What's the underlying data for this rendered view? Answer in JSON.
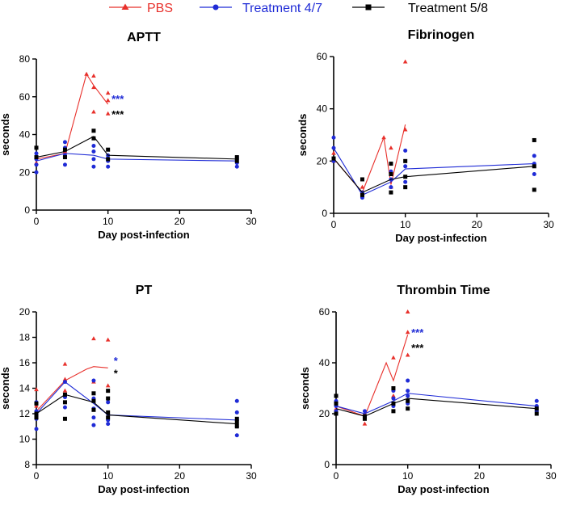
{
  "legend": [
    {
      "name": "PBS",
      "color": "#e8302b",
      "marker": "triangle"
    },
    {
      "name": "Treatment 4/7",
      "color": "#1f2bd6",
      "marker": "circle"
    },
    {
      "name": "Treatment 5/8",
      "color": "#000000",
      "marker": "square"
    }
  ],
  "chart_data": [
    {
      "type": "scatter",
      "title": "APTT",
      "xlabel": "Day post-infection",
      "ylabel": "seconds",
      "xlim": [
        0,
        30
      ],
      "ylim": [
        0,
        80
      ],
      "xticks": [
        0,
        10,
        20,
        30
      ],
      "yticks": [
        0,
        20,
        40,
        60,
        80
      ],
      "series": [
        {
          "name": "PBS",
          "line": [
            [
              0,
              27
            ],
            [
              4,
              30
            ],
            [
              7,
              72
            ],
            [
              8,
              66
            ],
            [
              10,
              56
            ]
          ],
          "points": [
            [
              0,
              25
            ],
            [
              0,
              28
            ],
            [
              4,
              29
            ],
            [
              4,
              31
            ],
            [
              7,
              72
            ],
            [
              8,
              71
            ],
            [
              8,
              65
            ],
            [
              8,
              52
            ],
            [
              10,
              62
            ],
            [
              10,
              58
            ],
            [
              10,
              51
            ]
          ]
        },
        {
          "name": "Treatment 4/7",
          "line": [
            [
              0,
              26
            ],
            [
              4,
              30
            ],
            [
              8,
              29
            ],
            [
              10,
              27
            ],
            [
              28,
              26
            ]
          ],
          "points": [
            [
              0,
              20
            ],
            [
              0,
              24
            ],
            [
              0,
              27
            ],
            [
              0,
              30
            ],
            [
              4,
              24
            ],
            [
              4,
              29
            ],
            [
              4,
              33
            ],
            [
              4,
              36
            ],
            [
              8,
              23
            ],
            [
              8,
              27
            ],
            [
              8,
              31
            ],
            [
              8,
              34
            ],
            [
              10,
              23
            ],
            [
              10,
              26
            ],
            [
              10,
              29
            ],
            [
              28,
              23
            ],
            [
              28,
              25
            ],
            [
              28,
              27
            ],
            [
              28,
              28
            ]
          ]
        },
        {
          "name": "Treatment 5/8",
          "line": [
            [
              0,
              28
            ],
            [
              4,
              31
            ],
            [
              8,
              39
            ],
            [
              10,
              29
            ],
            [
              28,
              27
            ]
          ],
          "points": [
            [
              0,
              28
            ],
            [
              0,
              33
            ],
            [
              4,
              28
            ],
            [
              4,
              32
            ],
            [
              8,
              38
            ],
            [
              8,
              42
            ],
            [
              10,
              27
            ],
            [
              10,
              32
            ],
            [
              28,
              26
            ],
            [
              28,
              28
            ]
          ]
        }
      ],
      "annotations": [
        {
          "text": "***",
          "series": "Treatment 4/7",
          "x": 10.5,
          "y": 59
        },
        {
          "text": "***",
          "series": "Treatment 5/8",
          "x": 10.5,
          "y": 51
        }
      ]
    },
    {
      "type": "scatter",
      "title": "Fibrinogen",
      "xlabel": "Day post-infection",
      "ylabel": "seconds",
      "xlim": [
        0,
        30
      ],
      "ylim": [
        0,
        60
      ],
      "xticks": [
        0,
        10,
        20,
        30
      ],
      "yticks": [
        0,
        20,
        40,
        60
      ],
      "series": [
        {
          "name": "PBS",
          "line": [
            [
              0,
              21
            ],
            [
              4,
              8
            ],
            [
              7,
              29
            ],
            [
              8,
              11
            ],
            [
              10,
              34
            ]
          ],
          "points": [
            [
              0,
              20
            ],
            [
              0,
              23
            ],
            [
              4,
              8
            ],
            [
              4,
              10
            ],
            [
              7,
              29
            ],
            [
              8,
              25
            ],
            [
              8,
              10
            ],
            [
              10,
              58
            ],
            [
              10,
              32
            ]
          ]
        },
        {
          "name": "Treatment 4/7",
          "line": [
            [
              0,
              25
            ],
            [
              4,
              7
            ],
            [
              8,
              12
            ],
            [
              10,
              17
            ],
            [
              28,
              19
            ]
          ],
          "points": [
            [
              0,
              20
            ],
            [
              0,
              25
            ],
            [
              0,
              29
            ],
            [
              4,
              6
            ],
            [
              4,
              7
            ],
            [
              4,
              8
            ],
            [
              8,
              10
            ],
            [
              8,
              13
            ],
            [
              8,
              16
            ],
            [
              10,
              12
            ],
            [
              10,
              18
            ],
            [
              10,
              24
            ],
            [
              28,
              15
            ],
            [
              28,
              19
            ],
            [
              28,
              22
            ]
          ]
        },
        {
          "name": "Treatment 5/8",
          "line": [
            [
              0,
              21
            ],
            [
              4,
              8
            ],
            [
              8,
              13
            ],
            [
              10,
              14
            ],
            [
              28,
              18
            ]
          ],
          "points": [
            [
              0,
              21
            ],
            [
              4,
              7
            ],
            [
              4,
              13
            ],
            [
              8,
              8
            ],
            [
              8,
              15
            ],
            [
              8,
              19
            ],
            [
              10,
              10
            ],
            [
              10,
              14
            ],
            [
              10,
              20
            ],
            [
              28,
              9
            ],
            [
              28,
              18
            ],
            [
              28,
              28
            ]
          ]
        }
      ]
    },
    {
      "type": "scatter",
      "title": "PT",
      "xlabel": "Day post-infection",
      "ylabel": "seconds",
      "xlim": [
        0,
        30
      ],
      "ylim": [
        8,
        20
      ],
      "xticks": [
        0,
        10,
        20,
        30
      ],
      "yticks": [
        8,
        10,
        12,
        14,
        16,
        18,
        20
      ],
      "series": [
        {
          "name": "PBS",
          "line": [
            [
              0,
              12.2
            ],
            [
              4,
              14.6
            ],
            [
              7,
              15.5
            ],
            [
              8,
              15.7
            ],
            [
              10,
              15.6
            ]
          ],
          "points": [
            [
              0,
              11.7
            ],
            [
              0,
              12.6
            ],
            [
              0,
              13.9
            ],
            [
              4,
              13.8
            ],
            [
              4,
              14.7
            ],
            [
              4,
              15.9
            ],
            [
              8,
              17.9
            ],
            [
              8,
              14.5
            ],
            [
              10,
              17.8
            ],
            [
              10,
              14.2
            ]
          ]
        },
        {
          "name": "Treatment 4/7",
          "line": [
            [
              0,
              12.0
            ],
            [
              4,
              14.5
            ],
            [
              8,
              12.8
            ],
            [
              10,
              11.9
            ],
            [
              28,
              11.5
            ]
          ],
          "points": [
            [
              0,
              10.8
            ],
            [
              0,
              11.6
            ],
            [
              0,
              12.2
            ],
            [
              0,
              12.9
            ],
            [
              4,
              12.5
            ],
            [
              4,
              13.3
            ],
            [
              4,
              14.5
            ],
            [
              8,
              11.1
            ],
            [
              8,
              11.7
            ],
            [
              8,
              12.4
            ],
            [
              8,
              13.2
            ],
            [
              8,
              14.6
            ],
            [
              10,
              11.2
            ],
            [
              10,
              11.5
            ],
            [
              10,
              12.0
            ],
            [
              10,
              12.9
            ],
            [
              28,
              10.3
            ],
            [
              28,
              11.0
            ],
            [
              28,
              11.5
            ],
            [
              28,
              12.1
            ],
            [
              28,
              13.0
            ]
          ]
        },
        {
          "name": "Treatment 5/8",
          "line": [
            [
              0,
              12.0
            ],
            [
              4,
              13.5
            ],
            [
              8,
              12.9
            ],
            [
              10,
              11.9
            ],
            [
              28,
              11.2
            ]
          ],
          "points": [
            [
              0,
              11.7
            ],
            [
              0,
              12.0
            ],
            [
              0,
              12.8
            ],
            [
              4,
              11.6
            ],
            [
              4,
              12.9
            ],
            [
              4,
              13.5
            ],
            [
              8,
              12.3
            ],
            [
              8,
              13.0
            ],
            [
              8,
              13.6
            ],
            [
              10,
              11.7
            ],
            [
              10,
              12.1
            ],
            [
              10,
              13.2
            ],
            [
              10,
              13.8
            ],
            [
              28,
              11.0
            ],
            [
              28,
              11.3
            ],
            [
              28,
              11.6
            ]
          ]
        }
      ],
      "annotations": [
        {
          "text": "*",
          "series": "Treatment 4/7",
          "x": 10.8,
          "y": 16.2
        },
        {
          "text": "*",
          "series": "Treatment 5/8",
          "x": 10.8,
          "y": 15.2
        }
      ]
    },
    {
      "type": "scatter",
      "title": "Thrombin Time",
      "xlabel": "Day post-infection",
      "ylabel": "seconds",
      "xlim": [
        0,
        30
      ],
      "ylim": [
        0,
        60
      ],
      "xticks": [
        0,
        10,
        20,
        30
      ],
      "yticks": [
        0,
        20,
        40,
        60
      ],
      "series": [
        {
          "name": "PBS",
          "line": [
            [
              0,
              23
            ],
            [
              4,
              19
            ],
            [
              7,
              40
            ],
            [
              8,
              33
            ],
            [
              10,
              51
            ]
          ],
          "points": [
            [
              0,
              22
            ],
            [
              0,
              25
            ],
            [
              4,
              16
            ],
            [
              4,
              20
            ],
            [
              8,
              42
            ],
            [
              8,
              27
            ],
            [
              10,
              60
            ],
            [
              10,
              52
            ],
            [
              10,
              43
            ]
          ]
        },
        {
          "name": "Treatment 4/7",
          "line": [
            [
              0,
              23
            ],
            [
              4,
              20
            ],
            [
              8,
              25
            ],
            [
              10,
              28
            ],
            [
              28,
              23
            ]
          ],
          "points": [
            [
              0,
              21
            ],
            [
              0,
              23
            ],
            [
              0,
              25
            ],
            [
              4,
              19
            ],
            [
              4,
              21
            ],
            [
              8,
              23
            ],
            [
              8,
              26
            ],
            [
              8,
              29
            ],
            [
              10,
              24
            ],
            [
              10,
              27
            ],
            [
              10,
              29
            ],
            [
              10,
              33
            ],
            [
              28,
              21
            ],
            [
              28,
              23
            ],
            [
              28,
              25
            ]
          ]
        },
        {
          "name": "Treatment 5/8",
          "line": [
            [
              0,
              22
            ],
            [
              4,
              19
            ],
            [
              8,
              24
            ],
            [
              10,
              26
            ],
            [
              28,
              22
            ]
          ],
          "points": [
            [
              0,
              20
            ],
            [
              0,
              24
            ],
            [
              0,
              27
            ],
            [
              4,
              18
            ],
            [
              4,
              19
            ],
            [
              8,
              21
            ],
            [
              8,
              24
            ],
            [
              8,
              30
            ],
            [
              10,
              22
            ],
            [
              10,
              25
            ],
            [
              28,
              20
            ],
            [
              28,
              22
            ]
          ]
        }
      ],
      "annotations": [
        {
          "text": "***",
          "series": "Treatment 4/7",
          "x": 10.5,
          "y": 52
        },
        {
          "text": "***",
          "series": "Treatment 5/8",
          "x": 10.5,
          "y": 46
        }
      ]
    }
  ]
}
